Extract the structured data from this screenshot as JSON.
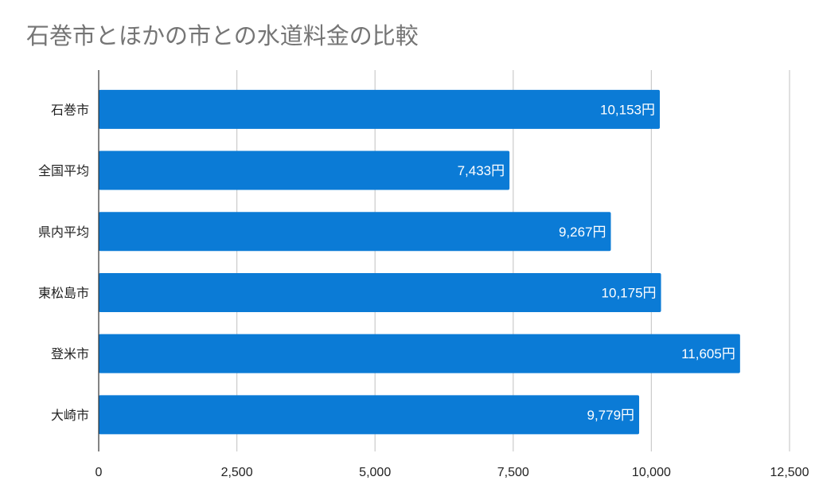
{
  "chart_data": {
    "type": "bar",
    "orientation": "horizontal",
    "title": "石巻市とほかの市との水道料金の比較",
    "categories": [
      "石巻市",
      "全国平均",
      "県内平均",
      "東松島市",
      "登米市",
      "大崎市"
    ],
    "values": [
      10153,
      7433,
      9267,
      10175,
      11605,
      9779
    ],
    "data_labels": [
      "10,153円",
      "7,433円",
      "9,267円",
      "10,175円",
      "11,605円",
      "9,779円"
    ],
    "xlim": [
      0,
      12500
    ],
    "x_ticks": [
      0,
      2500,
      5000,
      7500,
      10000,
      12500
    ],
    "x_tick_labels": [
      "0",
      "2,500",
      "5,000",
      "7,500",
      "10,000",
      "12,500"
    ],
    "bar_color": "#0b7bd6",
    "grid": true,
    "xlabel": "",
    "ylabel": ""
  }
}
